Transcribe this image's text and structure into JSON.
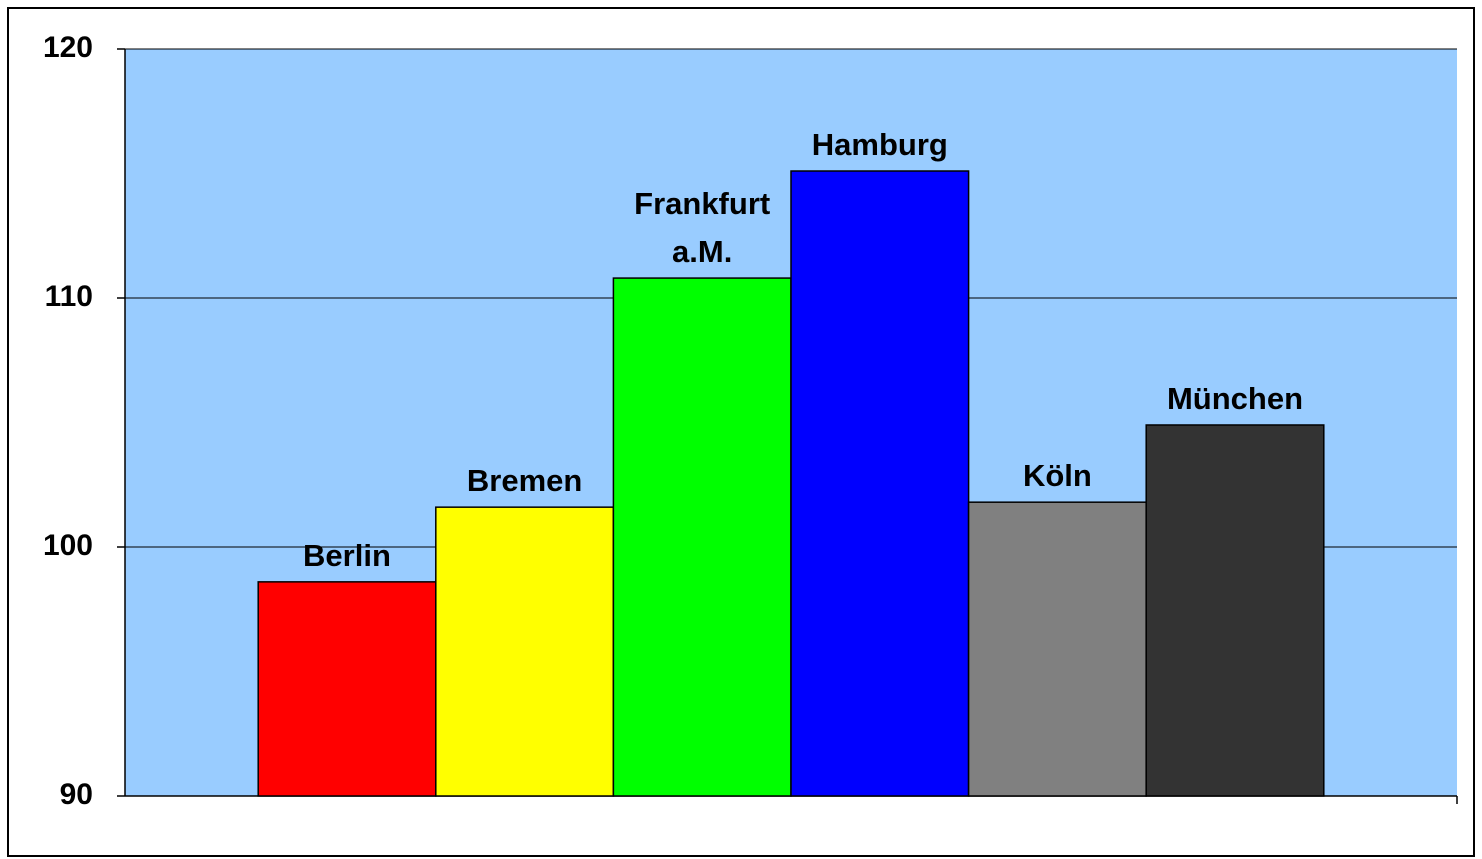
{
  "chart_data": {
    "type": "bar",
    "categories": [
      "Berlin",
      "Bremen",
      "Frankfurt a.M.",
      "Hamburg",
      "Köln",
      "München"
    ],
    "values": [
      98.6,
      101.6,
      110.8,
      115.1,
      101.8,
      104.9
    ],
    "colors": [
      "#ff0000",
      "#ffff00",
      "#00ff00",
      "#0000ff",
      "#808080",
      "#333333"
    ],
    "ylim": [
      90,
      120
    ],
    "yticks": [
      90,
      100,
      110,
      120
    ],
    "grid": true
  }
}
